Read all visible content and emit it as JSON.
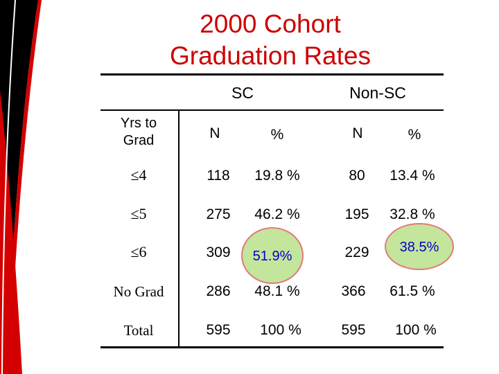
{
  "title": {
    "line1": "2000 Cohort",
    "line2": "Graduation Rates"
  },
  "colors": {
    "title": "#cc0000",
    "highlight_fill": "#c4e59c",
    "highlight_border": "#e07a7a",
    "highlight_text": "#0000cc"
  },
  "table": {
    "group_headers": {
      "sc": "SC",
      "non_sc": "Non-SC"
    },
    "col_headers": {
      "yrs_line1": "Yrs to",
      "yrs_line2": "Grad",
      "sc_n": "N",
      "sc_pct": "%",
      "nonsc_n": "N",
      "nonsc_pct": "%"
    },
    "rows": [
      {
        "label": "≤4",
        "sc_n": "118",
        "sc_pct": "19.8 %",
        "nonsc_n": "80",
        "nonsc_pct": "13.4 %"
      },
      {
        "label": "≤5",
        "sc_n": "275",
        "sc_pct": "46.2 %",
        "nonsc_n": "195",
        "nonsc_pct": "32.8 %"
      },
      {
        "label": "≤6",
        "sc_n": "309",
        "sc_pct": "51.9%",
        "nonsc_n": "229",
        "nonsc_pct": "38.5%"
      },
      {
        "label": "No Grad",
        "sc_n": "286",
        "sc_pct": "48.1 %",
        "nonsc_n": "366",
        "nonsc_pct": "61.5 %"
      },
      {
        "label": "Total",
        "sc_n": "595",
        "sc_pct": "100 %",
        "nonsc_n": "595",
        "nonsc_pct": "100 %"
      }
    ]
  }
}
